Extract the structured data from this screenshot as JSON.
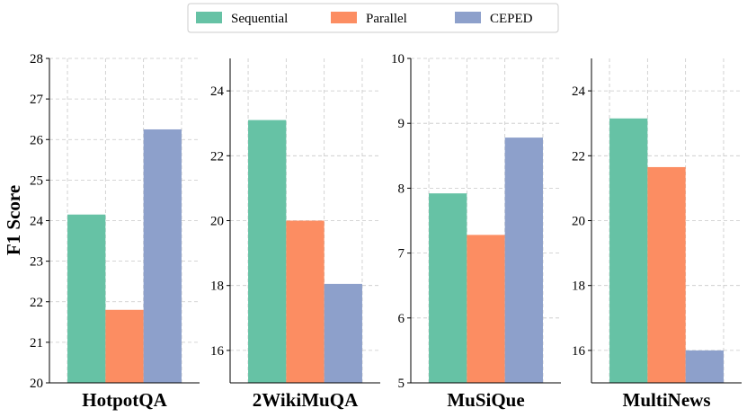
{
  "chart_data": {
    "type": "bar",
    "ylabel": "F1 Score",
    "legend": {
      "placement": "top-center",
      "entries": [
        "Sequential",
        "Parallel",
        "CEPED"
      ]
    },
    "colors": {
      "Sequential": "#66c2a5",
      "Parallel": "#fc8d62",
      "CEPED": "#8da0cb"
    },
    "grid": true,
    "panels": [
      {
        "category": "HotpotQA",
        "ylim": [
          20,
          28
        ],
        "ticks": [
          20,
          21,
          22,
          23,
          24,
          25,
          26,
          27,
          28
        ],
        "series": [
          {
            "name": "Sequential",
            "value": 24.15
          },
          {
            "name": "Parallel",
            "value": 21.8
          },
          {
            "name": "CEPED",
            "value": 26.25
          }
        ]
      },
      {
        "category": "2WikiMuQA",
        "ylim": [
          15,
          25
        ],
        "ticks": [
          16,
          18,
          20,
          22,
          24
        ],
        "series": [
          {
            "name": "Sequential",
            "value": 23.1
          },
          {
            "name": "Parallel",
            "value": 20.0
          },
          {
            "name": "CEPED",
            "value": 18.05
          }
        ]
      },
      {
        "category": "MuSiQue",
        "ylim": [
          5,
          10
        ],
        "ticks": [
          5,
          6,
          7,
          8,
          9,
          10
        ],
        "series": [
          {
            "name": "Sequential",
            "value": 7.92
          },
          {
            "name": "Parallel",
            "value": 7.28
          },
          {
            "name": "CEPED",
            "value": 8.78
          }
        ]
      },
      {
        "category": "MultiNews",
        "ylim": [
          15,
          25
        ],
        "ticks": [
          16,
          18,
          20,
          22,
          24
        ],
        "series": [
          {
            "name": "Sequential",
            "value": 23.15
          },
          {
            "name": "Parallel",
            "value": 21.65
          },
          {
            "name": "CEPED",
            "value": 16.0
          }
        ]
      }
    ]
  }
}
